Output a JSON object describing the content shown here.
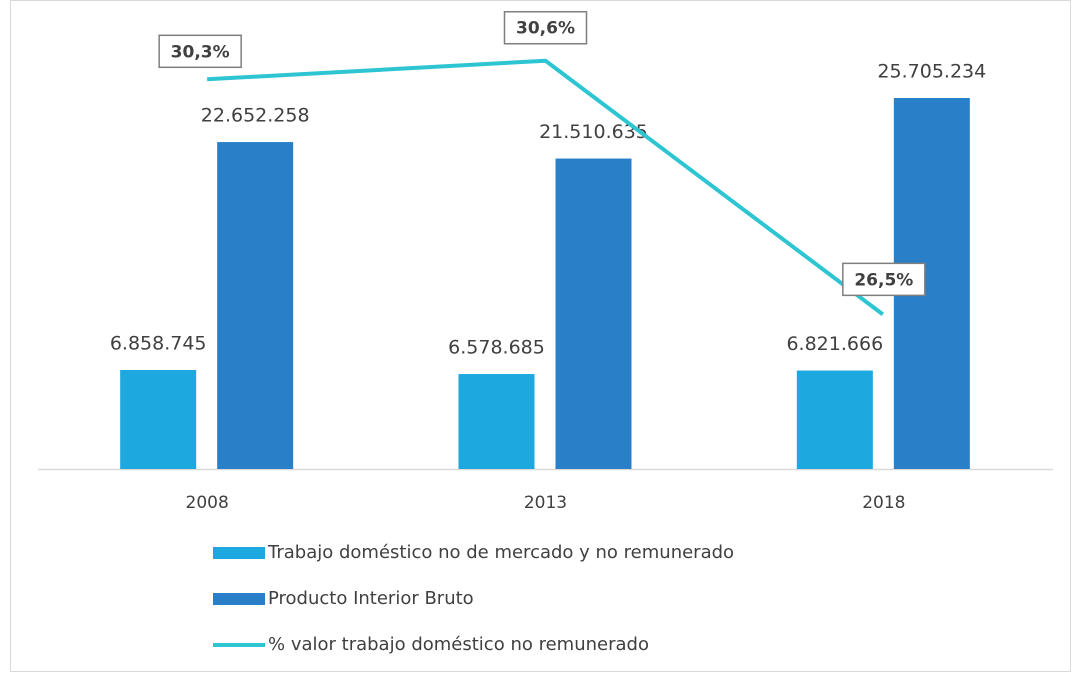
{
  "chart_data": {
    "type": "bar",
    "categories": [
      "2008",
      "2013",
      "2018"
    ],
    "ylim": [
      0,
      30000000
    ],
    "y2lim": [
      24,
      31
    ],
    "series": [
      {
        "name": "Trabajo doméstico no de mercado y no remunerado",
        "type": "bar",
        "color": "#1da8e0",
        "values": [
          6858745,
          6578685,
          6821666
        ],
        "value_labels": [
          "6.858.745",
          "6.578.685",
          "6.821.666"
        ]
      },
      {
        "name": "Producto Interior Bruto",
        "type": "bar",
        "color": "#2980c8",
        "values": [
          22652258,
          21510635,
          25705234
        ],
        "value_labels": [
          "22.652.258",
          "21.510.635",
          "25.705.234"
        ]
      },
      {
        "name": "% valor trabajo doméstico no remunerado",
        "type": "line",
        "axis": "y2",
        "color": "#2ec5d3",
        "values": [
          30.3,
          30.6,
          26.5
        ],
        "value_labels": [
          "30,3%",
          "30,6%",
          "26,5%"
        ]
      }
    ],
    "legend": "bottom"
  }
}
